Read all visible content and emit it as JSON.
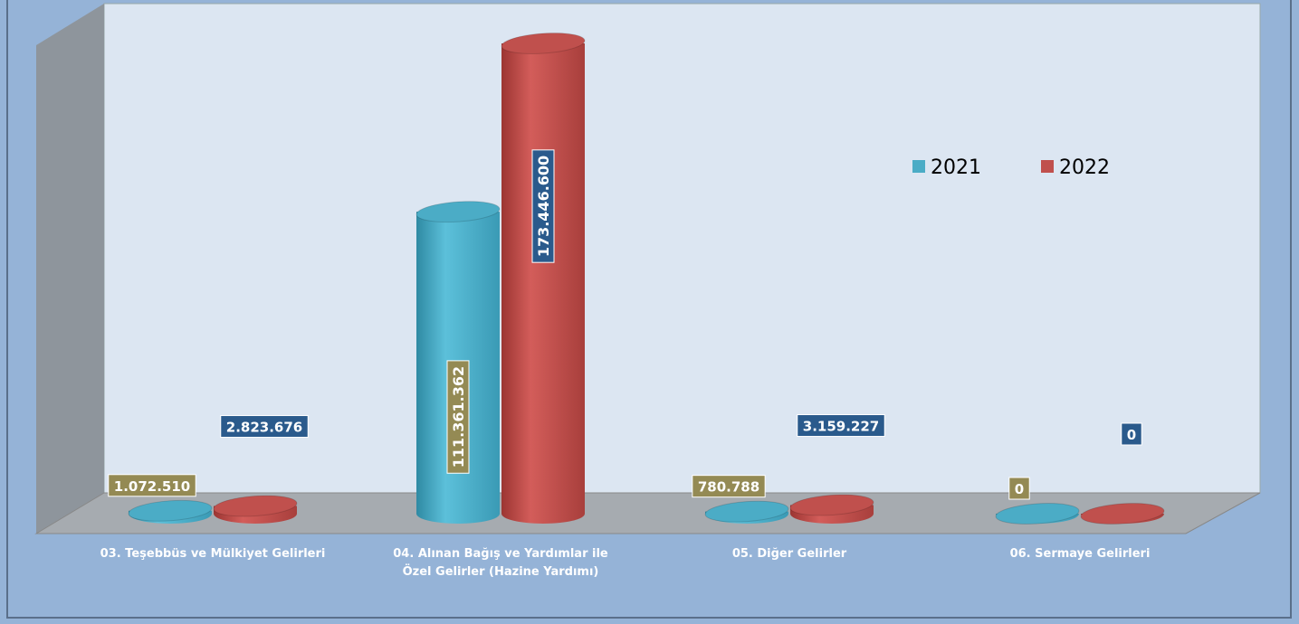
{
  "chart_data": {
    "type": "bar3d",
    "categories": [
      "03. Teşebbüs ve Mülkiyet Gelirleri",
      "04. Alınan Bağış ve Yardımlar ile Özel Gelirler (Hazine Yardımı)",
      "05. Diğer Gelirler",
      "06. Sermaye Gelirleri"
    ],
    "series": [
      {
        "name": "2021",
        "color": "#4bacc6",
        "values": [
          1072510,
          111361362,
          780788,
          0
        ],
        "value_labels": [
          "1.072.510",
          "111.361.362",
          "780.788",
          "0"
        ],
        "label_color": "#948a54"
      },
      {
        "name": "2022",
        "color": "#c0504d",
        "values": [
          2823676,
          173446600,
          3159227,
          0
        ],
        "value_labels": [
          "2.823.676",
          "173.446.600",
          "3.159.227",
          "0"
        ],
        "label_color": "#2a5a8c"
      }
    ],
    "legend": "top-right"
  }
}
